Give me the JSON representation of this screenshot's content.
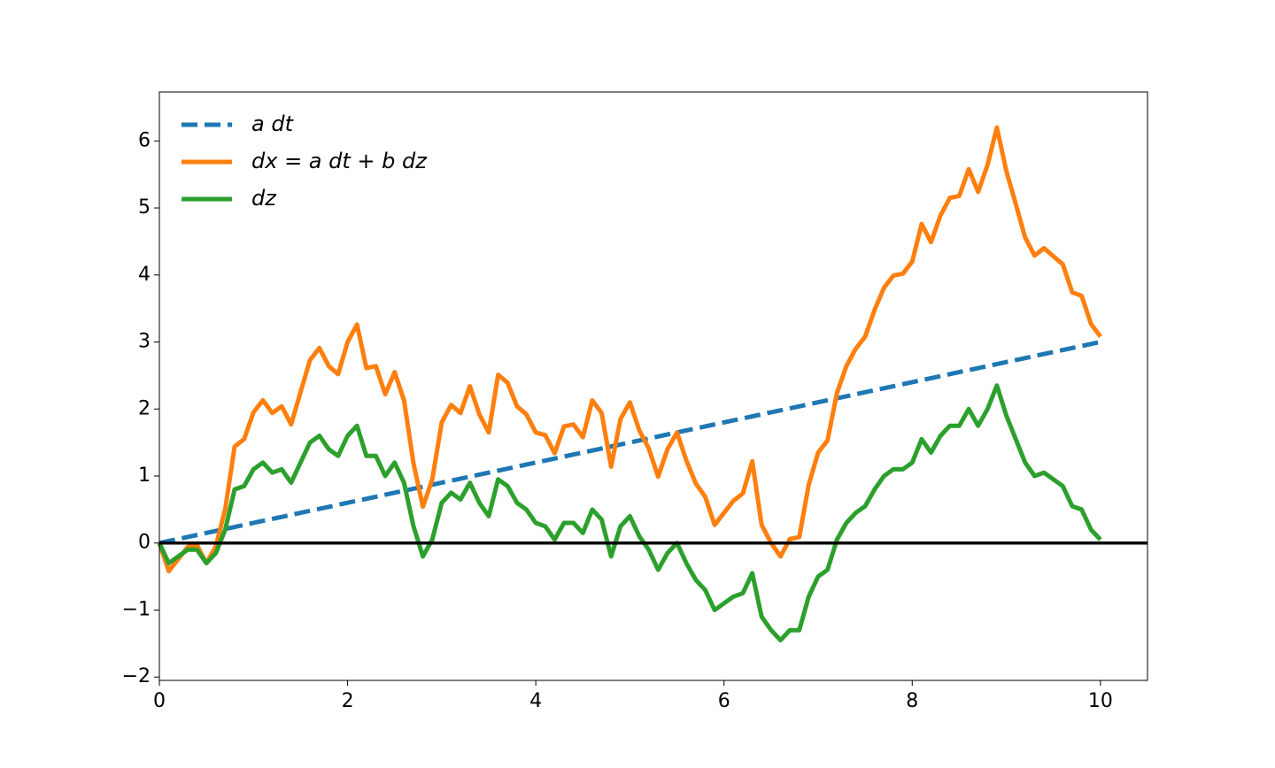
{
  "chart_data": {
    "type": "line",
    "x": [
      0,
      0.1,
      0.2,
      0.3,
      0.4,
      0.5,
      0.6,
      0.7,
      0.8,
      0.9,
      1,
      1.1,
      1.2,
      1.3,
      1.4,
      1.5,
      1.6,
      1.7,
      1.8,
      1.9,
      2,
      2.1,
      2.2,
      2.3,
      2.4,
      2.5,
      2.6,
      2.7,
      2.8,
      2.9,
      3,
      3.1,
      3.2,
      3.3,
      3.4,
      3.5,
      3.6,
      3.7,
      3.8,
      3.9,
      4,
      4.1,
      4.2,
      4.3,
      4.4,
      4.5,
      4.6,
      4.7,
      4.8,
      4.9,
      5,
      5.1,
      5.2,
      5.3,
      5.4,
      5.5,
      5.6,
      5.7,
      5.8,
      5.9,
      6,
      6.1,
      6.2,
      6.3,
      6.4,
      6.5,
      6.6,
      6.7,
      6.8,
      6.9,
      7,
      7.1,
      7.2,
      7.3,
      7.4,
      7.5,
      7.6,
      7.7,
      7.8,
      7.9,
      8,
      8.1,
      8.2,
      8.3,
      8.4,
      8.5,
      8.6,
      8.7,
      8.8,
      8.9,
      9,
      9.1,
      9.2,
      9.3,
      9.4,
      9.5,
      9.6,
      9.7,
      9.8,
      9.9,
      10
    ],
    "series": [
      {
        "name": "a dt",
        "color": "#1f77b4",
        "dashed": true,
        "x": [
          0,
          10
        ],
        "values": [
          0,
          3
        ]
      },
      {
        "name": "dx = a dt + b dz",
        "color": "#ff7f0e",
        "values": [
          0,
          -0.42,
          -0.24,
          -0.06,
          -0.03,
          -0.3,
          -0.05,
          0.51,
          1.44,
          1.55,
          1.95,
          2.13,
          1.94,
          2.04,
          1.77,
          2.25,
          2.73,
          2.91,
          2.64,
          2.52,
          3.0,
          3.26,
          2.61,
          2.64,
          2.22,
          2.55,
          2.13,
          1.19,
          0.54,
          0.95,
          1.8,
          2.06,
          1.94,
          2.34,
          1.92,
          1.65,
          2.51,
          2.39,
          2.04,
          1.92,
          1.65,
          1.61,
          1.34,
          1.74,
          1.77,
          1.58,
          2.13,
          1.94,
          1.14,
          1.85,
          2.1,
          1.68,
          1.41,
          0.99,
          1.4,
          1.65,
          1.23,
          0.89,
          0.69,
          0.27,
          0.45,
          0.63,
          0.74,
          1.22,
          0.27,
          0,
          -0.2,
          0.06,
          0.09,
          0.87,
          1.35,
          1.53,
          2.24,
          2.64,
          2.9,
          3.08,
          3.48,
          3.81,
          3.99,
          4.02,
          4.2,
          4.76,
          4.49,
          4.89,
          5.15,
          5.18,
          5.58,
          5.24,
          5.64,
          6.2,
          5.55,
          5.06,
          4.56,
          4.29,
          4.4,
          4.28,
          4.16,
          3.74,
          3.69,
          3.27,
          3.08
        ]
      },
      {
        "name": "dz",
        "color": "#2ca02c",
        "values": [
          0,
          -0.3,
          -0.2,
          -0.1,
          -0.1,
          -0.3,
          -0.15,
          0.2,
          0.8,
          0.85,
          1.1,
          1.2,
          1.05,
          1.1,
          0.9,
          1.2,
          1.5,
          1.6,
          1.4,
          1.3,
          1.6,
          1.75,
          1.3,
          1.3,
          1.0,
          1.2,
          0.9,
          0.25,
          -0.2,
          0.05,
          0.6,
          0.75,
          0.65,
          0.9,
          0.6,
          0.4,
          0.95,
          0.85,
          0.6,
          0.5,
          0.3,
          0.25,
          0.05,
          0.3,
          0.3,
          0.15,
          0.5,
          0.35,
          -0.2,
          0.25,
          0.4,
          0.1,
          -0.1,
          -0.4,
          -0.15,
          0,
          -0.3,
          -0.55,
          -0.7,
          -1.0,
          -0.9,
          -0.8,
          -0.75,
          -0.45,
          -1.1,
          -1.3,
          -1.45,
          -1.3,
          -1.3,
          -0.8,
          -0.5,
          -0.4,
          0.05,
          0.3,
          0.45,
          0.55,
          0.8,
          1.0,
          1.1,
          1.1,
          1.2,
          1.55,
          1.35,
          1.6,
          1.75,
          1.75,
          2.0,
          1.75,
          2.0,
          2.35,
          1.9,
          1.55,
          1.2,
          1.0,
          1.05,
          0.95,
          0.85,
          0.55,
          0.5,
          0.2,
          0.05
        ]
      }
    ],
    "xlim": [
      0,
      10.5
    ],
    "ylim": [
      -2.05,
      6.73
    ],
    "xticks": [
      0,
      2,
      4,
      6,
      8,
      10
    ],
    "yticks": [
      {
        "value": -2,
        "label": "−2"
      },
      {
        "value": -1,
        "label": "−1"
      },
      0,
      1,
      2,
      3,
      4,
      5,
      6
    ],
    "axhline": {
      "y": 0,
      "color": "#000000"
    },
    "legend": "upper left"
  }
}
